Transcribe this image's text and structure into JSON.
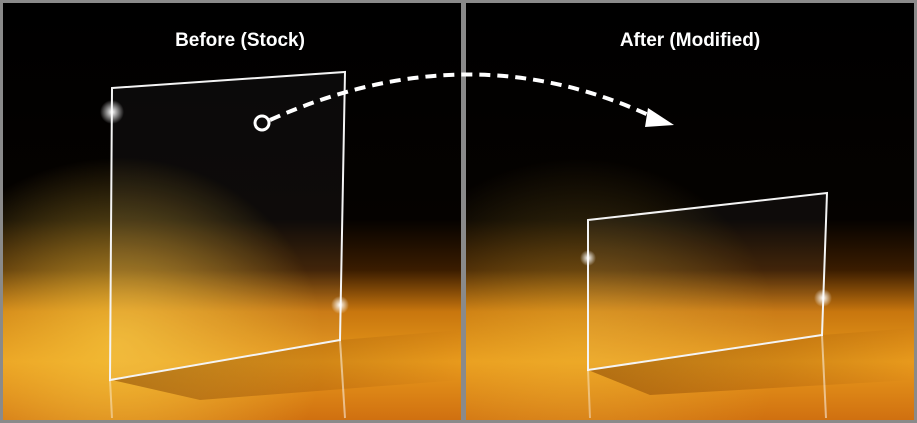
{
  "panels": [
    {
      "label": "Before (Stock)"
    },
    {
      "label": "After (Modified)"
    }
  ]
}
